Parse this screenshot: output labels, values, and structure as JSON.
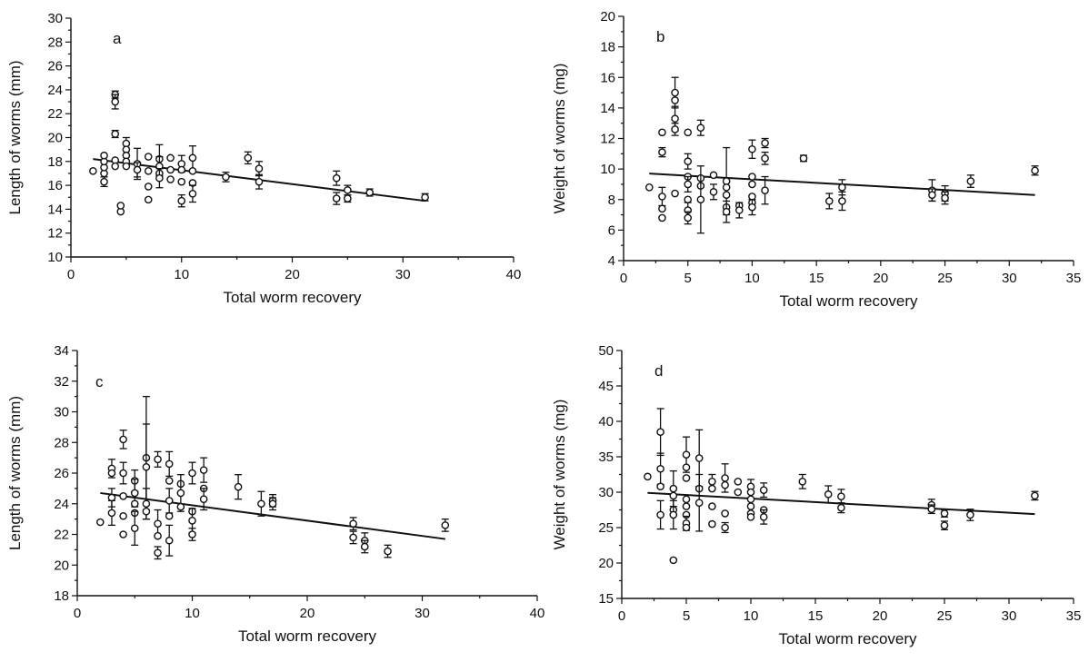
{
  "chart_data": [
    {
      "type": "scatter",
      "panel": "a",
      "xlabel": "Total worm recovery",
      "ylabel": "Length of worms (mm)",
      "xlim": [
        0,
        40
      ],
      "ylim": [
        10,
        30
      ],
      "xticks": [
        0,
        10,
        20,
        30,
        40
      ],
      "yticks": [
        10,
        12,
        14,
        16,
        18,
        20,
        22,
        24,
        26,
        28,
        30
      ],
      "grid": false,
      "points": [
        {
          "x": 2,
          "y": 17.2
        },
        {
          "x": 3,
          "y": 16.3,
          "err": 0.4
        },
        {
          "x": 3,
          "y": 17.0
        },
        {
          "x": 3,
          "y": 17.5
        },
        {
          "x": 3,
          "y": 18.0
        },
        {
          "x": 3,
          "y": 18.5
        },
        {
          "x": 4,
          "y": 23.6,
          "err": 0.3
        },
        {
          "x": 4,
          "y": 23.0,
          "err": 0.6
        },
        {
          "x": 4,
          "y": 20.3,
          "err": 0.3
        },
        {
          "x": 4,
          "y": 18.1
        },
        {
          "x": 4,
          "y": 17.6
        },
        {
          "x": 4.5,
          "y": 13.8
        },
        {
          "x": 4.5,
          "y": 14.3
        },
        {
          "x": 5,
          "y": 19.5,
          "err": 0.5
        },
        {
          "x": 5,
          "y": 19.0
        },
        {
          "x": 5,
          "y": 18.5
        },
        {
          "x": 5,
          "y": 18.0
        },
        {
          "x": 5,
          "y": 17.6
        },
        {
          "x": 6,
          "y": 17.8,
          "err": 1.3
        },
        {
          "x": 6,
          "y": 17.3,
          "err": 0.6
        },
        {
          "x": 7,
          "y": 18.4
        },
        {
          "x": 7,
          "y": 17.2
        },
        {
          "x": 7,
          "y": 15.9
        },
        {
          "x": 7,
          "y": 14.8
        },
        {
          "x": 8,
          "y": 18.2,
          "err": 1.2
        },
        {
          "x": 8,
          "y": 17.6,
          "err": 0.8
        },
        {
          "x": 8,
          "y": 17.0
        },
        {
          "x": 8,
          "y": 16.6,
          "err": 0.8
        },
        {
          "x": 9,
          "y": 18.3
        },
        {
          "x": 9,
          "y": 17.3
        },
        {
          "x": 9,
          "y": 16.5
        },
        {
          "x": 10,
          "y": 17.8,
          "err": 0.7
        },
        {
          "x": 10,
          "y": 17.3
        },
        {
          "x": 10,
          "y": 16.3
        },
        {
          "x": 10,
          "y": 14.7,
          "err": 0.5
        },
        {
          "x": 11,
          "y": 18.3,
          "err": 1.0
        },
        {
          "x": 11,
          "y": 17.2
        },
        {
          "x": 11,
          "y": 16.2
        },
        {
          "x": 11,
          "y": 15.3,
          "err": 0.7
        },
        {
          "x": 14,
          "y": 16.7,
          "err": 0.4
        },
        {
          "x": 16,
          "y": 18.3,
          "err": 0.5
        },
        {
          "x": 17,
          "y": 17.4,
          "err": 0.6
        },
        {
          "x": 17,
          "y": 16.3,
          "err": 0.6
        },
        {
          "x": 24,
          "y": 16.6,
          "err": 0.6
        },
        {
          "x": 24,
          "y": 14.9,
          "err": 0.5
        },
        {
          "x": 25,
          "y": 15.6,
          "err": 0.4
        },
        {
          "x": 25,
          "y": 14.9,
          "err": 0.3
        },
        {
          "x": 27,
          "y": 15.4,
          "err": 0.3
        },
        {
          "x": 32,
          "y": 15.0,
          "err": 0.3
        }
      ],
      "fit_line": [
        [
          2,
          18.2
        ],
        [
          32,
          14.7
        ]
      ]
    },
    {
      "type": "scatter",
      "panel": "b",
      "xlabel": "Total worm recovery",
      "ylabel": "Weight of worms (mg)",
      "xlim": [
        0,
        35
      ],
      "ylim": [
        4,
        20
      ],
      "xticks": [
        0,
        5,
        10,
        15,
        20,
        25,
        30,
        35
      ],
      "yticks": [
        4,
        6,
        8,
        10,
        12,
        14,
        16,
        18,
        20
      ],
      "grid": false,
      "points": [
        {
          "x": 2,
          "y": 8.8
        },
        {
          "x": 3,
          "y": 12.4
        },
        {
          "x": 3,
          "y": 11.1,
          "err": 0.3
        },
        {
          "x": 3,
          "y": 8.2,
          "err": 0.6
        },
        {
          "x": 3,
          "y": 7.4
        },
        {
          "x": 3,
          "y": 6.8
        },
        {
          "x": 4,
          "y": 15.0,
          "err": 1.0
        },
        {
          "x": 4,
          "y": 14.5
        },
        {
          "x": 4,
          "y": 13.3,
          "err": 0.8
        },
        {
          "x": 4,
          "y": 12.6,
          "err": 0.4
        },
        {
          "x": 4,
          "y": 8.4
        },
        {
          "x": 5,
          "y": 12.4
        },
        {
          "x": 5,
          "y": 10.5,
          "err": 0.5
        },
        {
          "x": 5,
          "y": 9.5
        },
        {
          "x": 5,
          "y": 9.0,
          "err": 0.5
        },
        {
          "x": 5,
          "y": 8.0
        },
        {
          "x": 5,
          "y": 7.3,
          "err": 0.5
        },
        {
          "x": 5,
          "y": 6.8,
          "err": 0.4
        },
        {
          "x": 6,
          "y": 12.7,
          "err": 0.5
        },
        {
          "x": 6,
          "y": 9.4
        },
        {
          "x": 6,
          "y": 8.9
        },
        {
          "x": 6,
          "y": 8.0,
          "err": 2.2
        },
        {
          "x": 7,
          "y": 9.6
        },
        {
          "x": 7,
          "y": 8.5,
          "err": 0.5
        },
        {
          "x": 8,
          "y": 9.2,
          "err": 2.2
        },
        {
          "x": 8,
          "y": 8.8
        },
        {
          "x": 8,
          "y": 8.3
        },
        {
          "x": 8,
          "y": 7.5
        },
        {
          "x": 8,
          "y": 7.2,
          "err": 0.7
        },
        {
          "x": 9,
          "y": 7.6
        },
        {
          "x": 9,
          "y": 7.3,
          "err": 0.5
        },
        {
          "x": 10,
          "y": 11.3,
          "err": 0.6
        },
        {
          "x": 10,
          "y": 9.5
        },
        {
          "x": 10,
          "y": 9.0
        },
        {
          "x": 10,
          "y": 8.2
        },
        {
          "x": 10,
          "y": 7.8
        },
        {
          "x": 10,
          "y": 7.5,
          "err": 0.5
        },
        {
          "x": 11,
          "y": 11.7,
          "err": 0.3
        },
        {
          "x": 11,
          "y": 10.7,
          "err": 0.4
        },
        {
          "x": 11,
          "y": 8.6,
          "err": 0.9
        },
        {
          "x": 14,
          "y": 10.7,
          "err": 0.2
        },
        {
          "x": 16,
          "y": 7.9,
          "err": 0.5
        },
        {
          "x": 17,
          "y": 8.8,
          "err": 0.5
        },
        {
          "x": 17,
          "y": 7.9,
          "err": 0.6
        },
        {
          "x": 24,
          "y": 8.6,
          "err": 0.7
        },
        {
          "x": 24,
          "y": 8.3,
          "err": 0.4
        },
        {
          "x": 25,
          "y": 8.4,
          "err": 0.5
        },
        {
          "x": 25,
          "y": 8.1,
          "err": 0.4
        },
        {
          "x": 27,
          "y": 9.2,
          "err": 0.4
        },
        {
          "x": 32,
          "y": 9.9,
          "err": 0.3
        }
      ],
      "fit_line": [
        [
          2,
          9.7
        ],
        [
          32,
          8.3
        ]
      ]
    },
    {
      "type": "scatter",
      "panel": "c",
      "xlabel": "Total worm recovery",
      "ylabel": "Length of worms (mm)",
      "xlim": [
        0,
        40
      ],
      "ylim": [
        18,
        34
      ],
      "xticks": [
        0,
        10,
        20,
        30,
        40
      ],
      "yticks": [
        18,
        20,
        22,
        24,
        26,
        28,
        30,
        32,
        34
      ],
      "grid": false,
      "points": [
        {
          "x": 2,
          "y": 22.8
        },
        {
          "x": 3,
          "y": 26.3,
          "err": 0.6
        },
        {
          "x": 3,
          "y": 26.0
        },
        {
          "x": 3,
          "y": 24.4,
          "err": 0.6
        },
        {
          "x": 3,
          "y": 23.4,
          "err": 0.8
        },
        {
          "x": 4,
          "y": 28.2,
          "err": 0.6
        },
        {
          "x": 4,
          "y": 26.0,
          "err": 0.7
        },
        {
          "x": 4,
          "y": 24.5
        },
        {
          "x": 4,
          "y": 23.2
        },
        {
          "x": 4,
          "y": 22.0
        },
        {
          "x": 5,
          "y": 25.5,
          "err": 0.7
        },
        {
          "x": 5,
          "y": 24.7,
          "err": 0.9
        },
        {
          "x": 5,
          "y": 24.0
        },
        {
          "x": 5,
          "y": 23.4
        },
        {
          "x": 5,
          "y": 22.4,
          "err": 1.1
        },
        {
          "x": 6,
          "y": 27.0,
          "err": 4.0
        },
        {
          "x": 6,
          "y": 26.4,
          "err": 2.8
        },
        {
          "x": 6,
          "y": 24.0,
          "err": 1.0
        },
        {
          "x": 6,
          "y": 23.5
        },
        {
          "x": 7,
          "y": 26.9,
          "err": 0.5
        },
        {
          "x": 7,
          "y": 22.7,
          "err": 0.9
        },
        {
          "x": 7,
          "y": 21.9
        },
        {
          "x": 7,
          "y": 20.8,
          "err": 0.4
        },
        {
          "x": 8,
          "y": 26.6,
          "err": 0.8
        },
        {
          "x": 8,
          "y": 25.5
        },
        {
          "x": 8,
          "y": 24.2,
          "err": 0.8
        },
        {
          "x": 8,
          "y": 23.2
        },
        {
          "x": 8,
          "y": 21.6,
          "err": 1.0
        },
        {
          "x": 9,
          "y": 25.3
        },
        {
          "x": 9,
          "y": 24.7,
          "err": 1.2
        },
        {
          "x": 9,
          "y": 23.8
        },
        {
          "x": 10,
          "y": 26.0,
          "err": 0.7
        },
        {
          "x": 10,
          "y": 23.5
        },
        {
          "x": 10,
          "y": 22.9,
          "err": 0.8
        },
        {
          "x": 10,
          "y": 22.0,
          "err": 0.4
        },
        {
          "x": 11,
          "y": 26.2,
          "err": 0.8
        },
        {
          "x": 11,
          "y": 25.0
        },
        {
          "x": 11,
          "y": 24.3,
          "err": 0.7
        },
        {
          "x": 14,
          "y": 25.1,
          "err": 0.8
        },
        {
          "x": 16,
          "y": 24.0,
          "err": 0.8
        },
        {
          "x": 17,
          "y": 24.2,
          "err": 0.4
        },
        {
          "x": 17,
          "y": 24.0,
          "err": 0.4
        },
        {
          "x": 24,
          "y": 22.7,
          "err": 0.4
        },
        {
          "x": 24,
          "y": 21.8,
          "err": 0.4
        },
        {
          "x": 25,
          "y": 21.6,
          "err": 0.5
        },
        {
          "x": 25,
          "y": 21.2,
          "err": 0.4
        },
        {
          "x": 27,
          "y": 20.9,
          "err": 0.4
        },
        {
          "x": 32,
          "y": 22.6,
          "err": 0.4
        }
      ],
      "fit_line": [
        [
          2,
          24.7
        ],
        [
          32,
          21.7
        ]
      ]
    },
    {
      "type": "scatter",
      "panel": "d",
      "xlabel": "Total worm recovery",
      "ylabel": "Weight of worms (mg)",
      "xlim": [
        0,
        35
      ],
      "ylim": [
        15,
        50
      ],
      "xticks": [
        0,
        5,
        10,
        15,
        20,
        25,
        30,
        35
      ],
      "yticks": [
        15,
        20,
        25,
        30,
        35,
        40,
        45,
        50
      ],
      "grid": false,
      "points": [
        {
          "x": 2,
          "y": 32.2
        },
        {
          "x": 3,
          "y": 38.5,
          "err": 3.3
        },
        {
          "x": 3,
          "y": 33.3,
          "err": 2.2
        },
        {
          "x": 3,
          "y": 30.8
        },
        {
          "x": 3,
          "y": 26.8,
          "err": 2.0
        },
        {
          "x": 4,
          "y": 30.5,
          "err": 2.5
        },
        {
          "x": 4,
          "y": 29.5
        },
        {
          "x": 4,
          "y": 27.5
        },
        {
          "x": 4,
          "y": 26.8,
          "err": 2.0
        },
        {
          "x": 4,
          "y": 20.4
        },
        {
          "x": 5,
          "y": 35.3,
          "err": 2.5
        },
        {
          "x": 5,
          "y": 33.5
        },
        {
          "x": 5,
          "y": 32.0
        },
        {
          "x": 5,
          "y": 29.0
        },
        {
          "x": 5,
          "y": 28.0
        },
        {
          "x": 5,
          "y": 26.8
        },
        {
          "x": 5,
          "y": 25.6,
          "err": 1.0
        },
        {
          "x": 5,
          "y": 25.0
        },
        {
          "x": 6,
          "y": 34.8,
          "err": 4.0
        },
        {
          "x": 6,
          "y": 30.5
        },
        {
          "x": 6,
          "y": 28.5,
          "err": 4.0
        },
        {
          "x": 7,
          "y": 31.5,
          "err": 1.0
        },
        {
          "x": 7,
          "y": 30.5
        },
        {
          "x": 7,
          "y": 28.0
        },
        {
          "x": 7,
          "y": 25.5
        },
        {
          "x": 8,
          "y": 32.0,
          "err": 2.0
        },
        {
          "x": 8,
          "y": 31.0
        },
        {
          "x": 8,
          "y": 27.0
        },
        {
          "x": 8,
          "y": 25.0,
          "err": 0.7
        },
        {
          "x": 9,
          "y": 31.5
        },
        {
          "x": 9,
          "y": 30.0
        },
        {
          "x": 10,
          "y": 30.8,
          "err": 1.0
        },
        {
          "x": 10,
          "y": 30.0
        },
        {
          "x": 10,
          "y": 29.0
        },
        {
          "x": 10,
          "y": 28.0
        },
        {
          "x": 10,
          "y": 27.0
        },
        {
          "x": 10,
          "y": 26.5
        },
        {
          "x": 11,
          "y": 30.3,
          "err": 1.0
        },
        {
          "x": 11,
          "y": 27.5
        },
        {
          "x": 11,
          "y": 26.5,
          "err": 1.0
        },
        {
          "x": 14,
          "y": 31.5,
          "err": 1.0
        },
        {
          "x": 16,
          "y": 29.7,
          "err": 1.2
        },
        {
          "x": 17,
          "y": 29.4,
          "err": 1.0
        },
        {
          "x": 17,
          "y": 27.8,
          "err": 0.7
        },
        {
          "x": 24,
          "y": 28.2,
          "err": 0.8
        },
        {
          "x": 24,
          "y": 27.6,
          "err": 0.6
        },
        {
          "x": 25,
          "y": 27.0,
          "err": 0.5
        },
        {
          "x": 25,
          "y": 25.3,
          "err": 0.6
        },
        {
          "x": 27,
          "y": 26.8,
          "err": 0.8
        },
        {
          "x": 32,
          "y": 29.5,
          "err": 0.6
        }
      ],
      "fit_line": [
        [
          2,
          29.9
        ],
        [
          32,
          26.9
        ]
      ]
    }
  ]
}
